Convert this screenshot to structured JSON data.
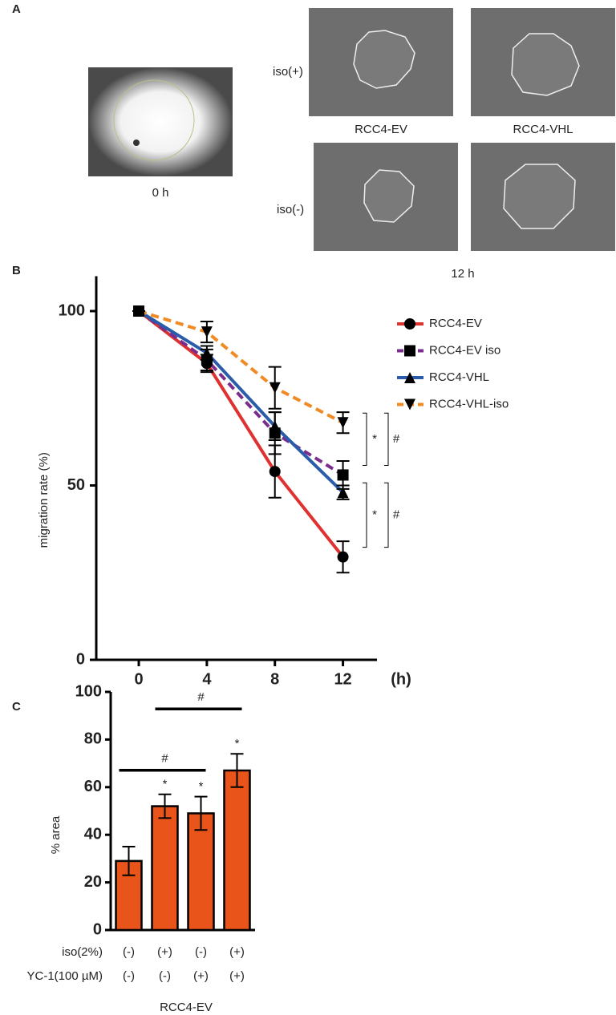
{
  "panel_labels": [
    "A",
    "B",
    "C"
  ],
  "panel_a": {
    "time_0": "0 h",
    "time_12": "12 h",
    "rows": [
      "iso(+)",
      "iso(-)"
    ],
    "columns": [
      "RCC4-EV",
      "RCC4-VHL"
    ]
  },
  "chart_data": [
    {
      "type": "line",
      "ylabel": "migration rate (%)",
      "x_unit_label": "(h)",
      "x": [
        0,
        4,
        8,
        12
      ],
      "xlim": [
        -2.5,
        14
      ],
      "xticks": [
        0,
        4,
        8,
        12
      ],
      "ylim": [
        0,
        110
      ],
      "yticks": [
        0,
        50,
        100
      ],
      "series": [
        {
          "name": "RCC4-EV",
          "color": "#e03131",
          "dashed": false,
          "marker": "circle",
          "values": [
            100,
            85,
            54,
            29.5
          ],
          "errors": [
            0,
            2.5,
            7.5,
            4.5
          ]
        },
        {
          "name": "RCC4-EV iso",
          "color": "#7b2d8e",
          "dashed": true,
          "marker": "square",
          "values": [
            100,
            86,
            65,
            53
          ],
          "errors": [
            0,
            3,
            6,
            4
          ]
        },
        {
          "name": "RCC4-VHL",
          "color": "#2a5caa",
          "dashed": false,
          "marker": "triangle",
          "values": [
            100,
            88,
            67,
            48
          ],
          "errors": [
            0,
            2,
            4,
            2
          ]
        },
        {
          "name": "RCC4-VHL-iso",
          "color": "#f08a24",
          "dashed": true,
          "marker": "triangle-down",
          "values": [
            100,
            94,
            78,
            68
          ],
          "errors": [
            0,
            3,
            6,
            3
          ]
        }
      ],
      "annotations": [
        {
          "texts": [
            "*",
            "#"
          ],
          "series": [
            3,
            1
          ]
        },
        {
          "texts": [
            "*",
            "#"
          ],
          "series": [
            2,
            0
          ]
        }
      ]
    },
    {
      "type": "bar",
      "ylabel": "% area",
      "xlabel": "RCC4-EV",
      "color": "#e8541a",
      "row_labels": [
        "iso(2%)",
        "YC-1(100 µM)"
      ],
      "category_rows": [
        [
          "(-)",
          "(+)",
          "(-)",
          "(+)"
        ],
        [
          "(-)",
          "(-)",
          "(+)",
          "(+)"
        ]
      ],
      "values": [
        29,
        52,
        49,
        67
      ],
      "errors": [
        6,
        5,
        7,
        7
      ],
      "markers": [
        null,
        "*",
        "*",
        "*"
      ],
      "brackets": [
        {
          "text": "#",
          "from": 0,
          "to": 2
        },
        {
          "text": "#",
          "from": 1,
          "to": 3
        }
      ],
      "ylim": [
        0,
        100
      ],
      "yticks": [
        0,
        20,
        40,
        60,
        80,
        100
      ]
    }
  ]
}
